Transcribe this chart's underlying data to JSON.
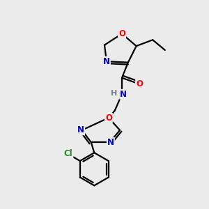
{
  "background_color": "#ebebeb",
  "bond_color": "#000000",
  "atom_colors": {
    "O": "#ff0000",
    "N": "#0000cd",
    "C": "#000000",
    "H": "#708090",
    "Cl": "#228b22"
  },
  "figsize": [
    3.0,
    3.0
  ],
  "dpi": 100,
  "lw": 1.6,
  "fontsize": 8.5
}
